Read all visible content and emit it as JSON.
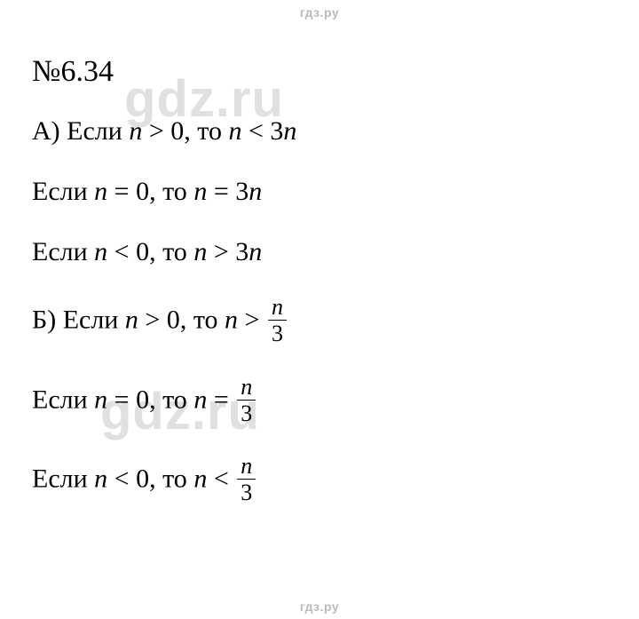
{
  "site": {
    "label": "гдз.ру"
  },
  "watermarks": {
    "text": "gdz.ru"
  },
  "heading": "№6.34",
  "lines": {
    "a1": {
      "letter": "А) ",
      "if": "Если ",
      "v1": "n",
      "op1": " > 0",
      "then": ", то ",
      "v2": "n",
      "op2": " < 3",
      "v3": "n"
    },
    "a2": {
      "if": "Если ",
      "v1": "n",
      "op1": " = 0",
      "then": ", то ",
      "v2": "n",
      "op2": " = 3",
      "v3": "n"
    },
    "a3": {
      "if": "Если ",
      "v1": "n",
      "op1": " < 0",
      "then": ", то ",
      "v2": "n",
      "op2": " > 3",
      "v3": "n"
    },
    "b1": {
      "letter": "Б) ",
      "if": "Если ",
      "v1": "n",
      "op1": " > 0",
      "then": ", то ",
      "v2": "n",
      "op2": " > ",
      "num": "n",
      "den": "3"
    },
    "b2": {
      "if": "Если ",
      "v1": "n",
      "op1": " = 0",
      "then": ", то ",
      "v2": "n",
      "op2": " = ",
      "num": "n",
      "den": "3"
    },
    "b3": {
      "if": "Если ",
      "v1": "n",
      "op1": " < 0",
      "then": ", то ",
      "v2": "n",
      "op2": " < ",
      "num": "n",
      "den": "3"
    }
  },
  "styling": {
    "background_color": "#ffffff",
    "text_color": "#000000",
    "site_label_color": "#bbbbbb",
    "watermark_color": "#e0e0e0",
    "heading_fontsize": 34,
    "line_fontsize": 30,
    "frac_fontsize": 26,
    "watermark_fontsize": 58,
    "site_label_fontsize": 14,
    "font_family_body": "Times New Roman",
    "font_family_labels": "Arial"
  }
}
